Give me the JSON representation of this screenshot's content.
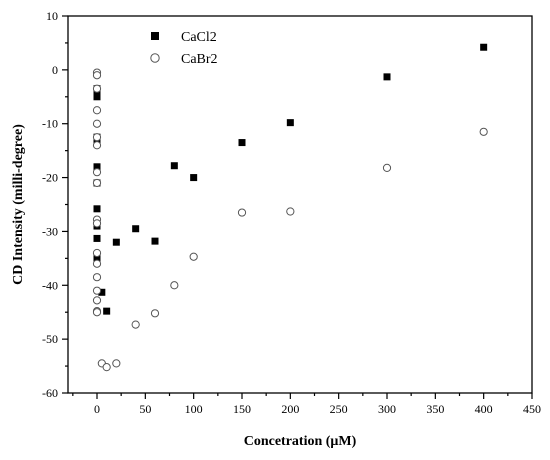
{
  "chart_data": {
    "type": "scatter",
    "xlabel": "Concetration (μM)",
    "ylabel": "CD Intensity (milli-degree)",
    "xlim": [
      -30,
      450
    ],
    "ylim": [
      -60,
      10
    ],
    "xticks": [
      0,
      50,
      100,
      150,
      200,
      250,
      300,
      350,
      400,
      450
    ],
    "yticks": [
      10,
      0,
      -10,
      -20,
      -30,
      -40,
      -50,
      -60
    ],
    "legend_position": "top-left",
    "grid": false,
    "series": [
      {
        "name": "CaCl2",
        "marker": "filled-square",
        "color": "#000000",
        "x": [
          0,
          0,
          0,
          0,
          0,
          0,
          0,
          0,
          0,
          0,
          0,
          5,
          10,
          20,
          40,
          60,
          80,
          100,
          150,
          200,
          300,
          400
        ],
        "y": [
          -3.5,
          -4.5,
          -5,
          -12.5,
          -13.5,
          -18,
          -21,
          -25.8,
          -29,
          -31.3,
          -35,
          -41.3,
          -44.8,
          -32,
          -29.5,
          -31.8,
          -17.8,
          -20,
          -13.5,
          -9.8,
          -1.3,
          4.2
        ]
      },
      {
        "name": "CaBr2",
        "marker": "open-circle",
        "color": "#555555",
        "x": [
          0,
          0,
          0,
          0,
          0,
          0,
          0,
          0,
          0,
          0,
          0,
          0,
          0,
          0,
          0,
          0,
          0,
          0,
          5,
          10,
          20,
          40,
          60,
          80,
          100,
          150,
          200,
          300,
          400
        ],
        "y": [
          -0.5,
          -1,
          -3.5,
          -7.5,
          -10,
          -12.5,
          -14,
          -19,
          -21,
          -27.8,
          -28.5,
          -34,
          -36,
          -38.5,
          -41,
          -42.8,
          -44.8,
          -45,
          -54.5,
          -55.2,
          -54.5,
          -47.3,
          -45.2,
          -40,
          -34.7,
          -26.5,
          -26.3,
          -18.2,
          -11.5
        ]
      }
    ]
  }
}
